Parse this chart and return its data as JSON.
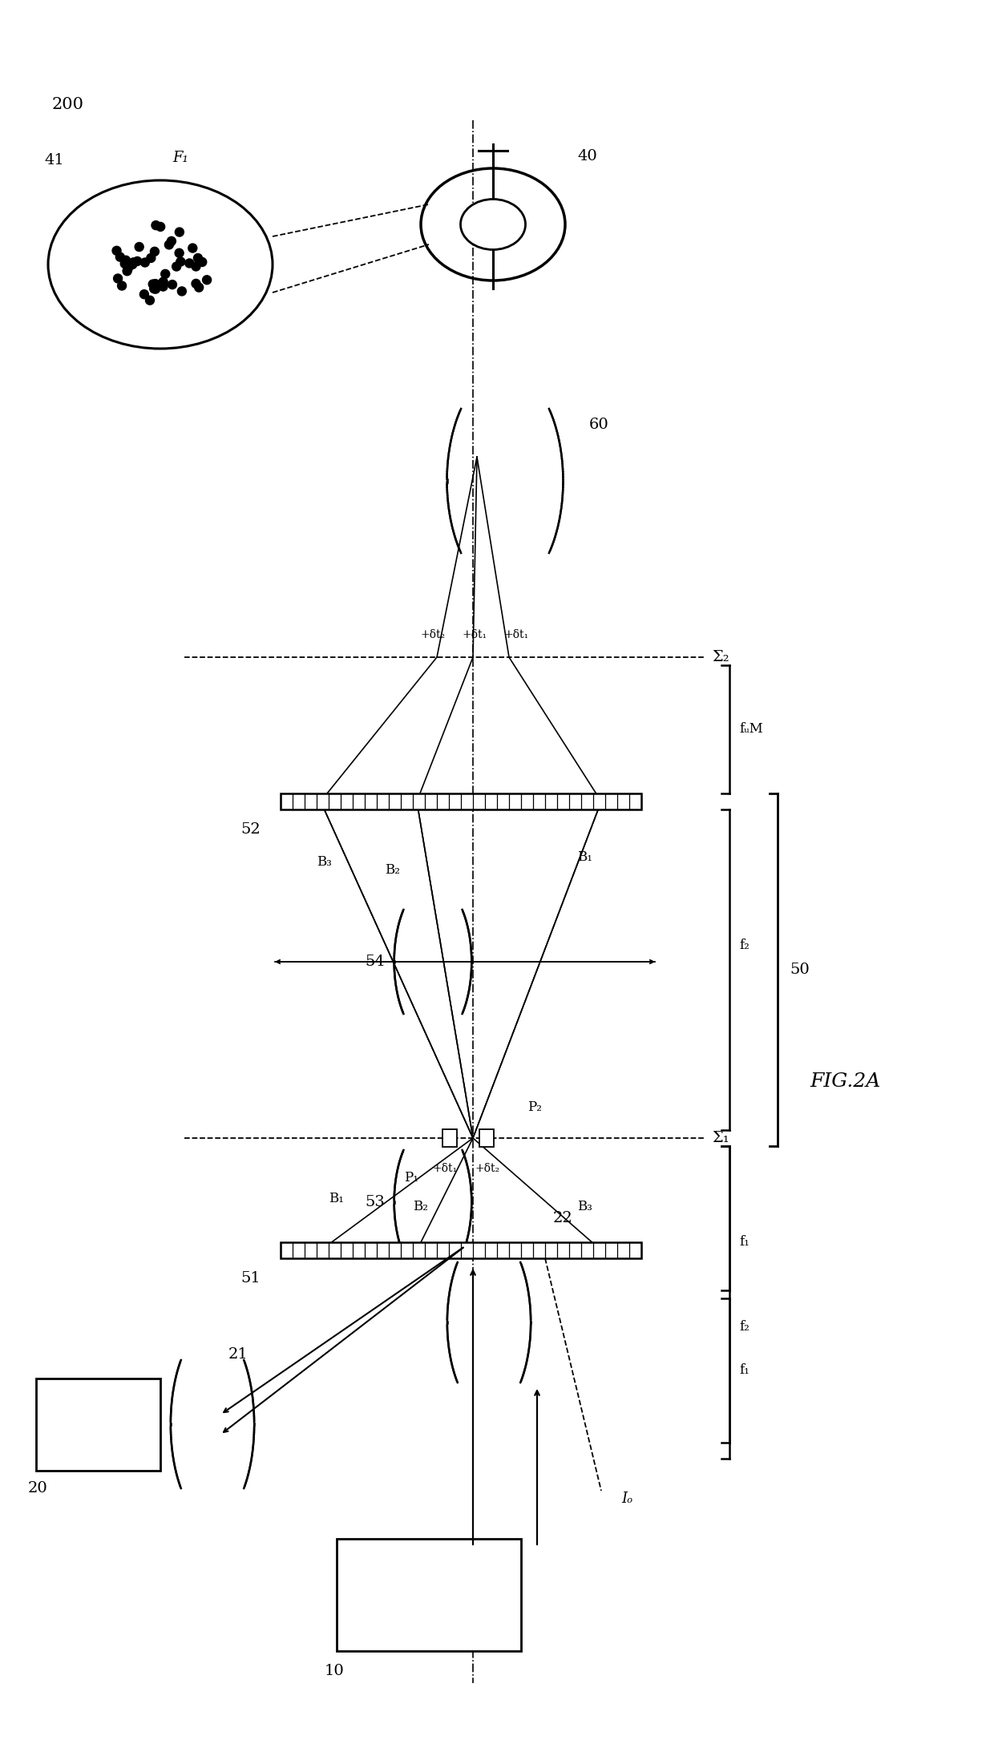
{
  "bg_color": "#ffffff",
  "line_color": "#000000",
  "fig_width": 12.4,
  "fig_height": 21.96,
  "dpi": 100,
  "labels": {
    "fig_label": "FIG.2A",
    "num_200": "200",
    "num_40": "40",
    "num_41": "41",
    "num_F1": "F₁",
    "num_60": "60",
    "num_52": "52",
    "num_54": "54",
    "num_53": "53",
    "num_51": "51",
    "num_22": "22",
    "num_20": "20",
    "num_21": "21",
    "num_10": "10",
    "num_50": "50",
    "num_fuM": "fᵤM",
    "num_f2_upper": "f₂",
    "num_f2_lower": "f₂",
    "num_f1_upper": "f₁",
    "num_f1_lower": "f₁",
    "sigma2": "Σ₂",
    "sigma1": "Σ₁",
    "dt2_top1": "+δt₂",
    "dt1_top1": "+δt₁",
    "dt1_top2": "+δt₁",
    "dt1_mid": "+δt₁",
    "dt2_mid": "+δt₂",
    "B1_upper": "B₁",
    "B2_upper": "B₂",
    "B3_upper": "B₃",
    "B1_lower": "B₁",
    "B2_lower": "B₂",
    "B3_lower": "B₃",
    "P1": "P₁",
    "P2": "P₂",
    "Io": "Iₒ"
  }
}
